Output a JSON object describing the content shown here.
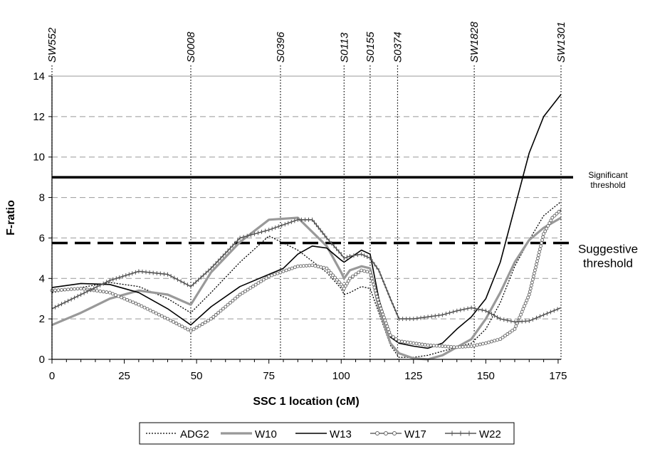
{
  "chart_data": {
    "type": "line",
    "xlabel": "SSC 1 location (cM)",
    "ylabel": "F-ratio",
    "xlim": [
      0,
      176
    ],
    "ylim": [
      0,
      14
    ],
    "x_ticks": [
      "0",
      "25",
      "50",
      "75",
      "100",
      "125",
      "150",
      "175"
    ],
    "y_ticks": [
      "0",
      "2",
      "4",
      "6",
      "8",
      "10",
      "12",
      "14"
    ],
    "grid": "horizontal dashed",
    "legend_position": "bottom",
    "markers": [
      {
        "name": "SW552",
        "x": 0
      },
      {
        "name": "S0008",
        "x": 48
      },
      {
        "name": "S0396",
        "x": 79
      },
      {
        "name": "S0113",
        "x": 101
      },
      {
        "name": "S0155",
        "x": 110
      },
      {
        "name": "S0374",
        "x": 119.5
      },
      {
        "name": "SW1828",
        "x": 146
      },
      {
        "name": "SW1301",
        "x": 176
      }
    ],
    "thresholds": [
      {
        "lines": [
          "Significant",
          "threshold"
        ],
        "value": 9.0,
        "style": "solid"
      },
      {
        "lines": [
          "Suggestive",
          "threshold"
        ],
        "value": 5.75,
        "style": "dashed"
      }
    ],
    "series": [
      {
        "name": "ADG2",
        "color": "#000000",
        "style": "dotted",
        "x": [
          0,
          10,
          20,
          30,
          40,
          48,
          55,
          65,
          75,
          85,
          95,
          100,
          101,
          103,
          107,
          110,
          113,
          117,
          120,
          125,
          130,
          135,
          140,
          145,
          150,
          155,
          160,
          165,
          170,
          176
        ],
        "y": [
          3.3,
          3.55,
          3.8,
          3.6,
          3.0,
          2.3,
          3.3,
          4.8,
          6.1,
          5.4,
          4.3,
          3.5,
          3.2,
          3.3,
          3.6,
          3.5,
          2.3,
          0.7,
          0.1,
          0.1,
          0.2,
          0.4,
          0.6,
          0.8,
          1.5,
          2.8,
          4.6,
          5.9,
          7.1,
          7.8
        ]
      },
      {
        "name": "W10",
        "color": "#999999",
        "style": "thick",
        "x": [
          0,
          10,
          20,
          30,
          40,
          48,
          55,
          65,
          75,
          85,
          95,
          100,
          101,
          103,
          107,
          110,
          113,
          117,
          120,
          125,
          130,
          135,
          140,
          145,
          150,
          155,
          160,
          165,
          170,
          176
        ],
        "y": [
          1.7,
          2.3,
          3.0,
          3.4,
          3.2,
          2.7,
          4.3,
          5.8,
          6.9,
          7.0,
          5.6,
          4.3,
          4.0,
          4.4,
          4.6,
          4.5,
          2.5,
          0.8,
          0.3,
          0.05,
          0.0,
          0.2,
          0.6,
          1.0,
          2.0,
          3.3,
          4.8,
          5.9,
          6.5,
          7.0
        ]
      },
      {
        "name": "W13",
        "color": "#000000",
        "style": "solid",
        "x": [
          0,
          10,
          20,
          30,
          40,
          48,
          55,
          65,
          75,
          80,
          85,
          90,
          95,
          100,
          101,
          103,
          107,
          110,
          113,
          117,
          120,
          125,
          130,
          135,
          140,
          145,
          150,
          155,
          160,
          165,
          170,
          176
        ],
        "y": [
          3.55,
          3.75,
          3.7,
          3.3,
          2.5,
          1.7,
          2.6,
          3.6,
          4.2,
          4.5,
          5.2,
          5.6,
          5.5,
          4.9,
          4.8,
          5.0,
          5.4,
          5.2,
          3.0,
          1.1,
          0.8,
          0.65,
          0.55,
          0.8,
          1.5,
          2.1,
          3.0,
          4.8,
          7.5,
          10.2,
          12.0,
          13.1
        ]
      },
      {
        "name": "W17",
        "color": "#666666",
        "style": "circles",
        "x": [
          0,
          10,
          20,
          30,
          40,
          48,
          55,
          65,
          75,
          85,
          90,
          95,
          100,
          101,
          103,
          107,
          110,
          113,
          117,
          120,
          125,
          130,
          135,
          140,
          145,
          150,
          155,
          160,
          165,
          168,
          170,
          173,
          176
        ],
        "y": [
          3.4,
          3.5,
          3.3,
          2.7,
          2.0,
          1.4,
          2.0,
          3.2,
          4.1,
          4.6,
          4.65,
          4.5,
          3.7,
          3.5,
          4.0,
          4.4,
          4.3,
          2.8,
          1.2,
          0.9,
          0.8,
          0.7,
          0.65,
          0.6,
          0.65,
          0.8,
          1.0,
          1.5,
          3.2,
          5.0,
          6.2,
          7.0,
          7.4
        ]
      },
      {
        "name": "W22",
        "color": "#555555",
        "style": "crosses",
        "x": [
          0,
          10,
          20,
          30,
          40,
          48,
          55,
          65,
          75,
          85,
          90,
          95,
          100,
          101,
          103,
          107,
          110,
          113,
          117,
          120,
          125,
          130,
          135,
          140,
          145,
          150,
          155,
          160,
          165,
          170,
          176
        ],
        "y": [
          2.5,
          3.2,
          3.9,
          4.35,
          4.2,
          3.6,
          4.5,
          6.0,
          6.4,
          6.9,
          6.9,
          6.0,
          5.2,
          5.0,
          5.1,
          5.2,
          5.0,
          4.4,
          3.0,
          2.0,
          2.0,
          2.1,
          2.2,
          2.4,
          2.55,
          2.4,
          2.0,
          1.85,
          1.9,
          2.2,
          2.55
        ]
      }
    ]
  }
}
